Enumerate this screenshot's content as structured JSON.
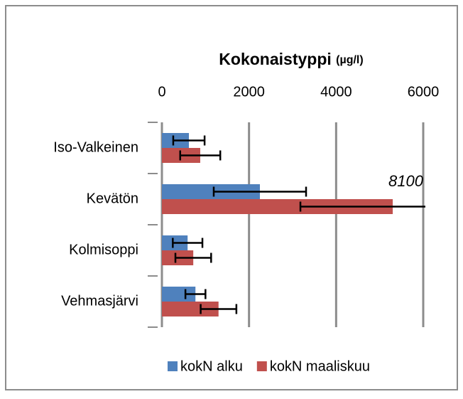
{
  "chart_data": {
    "type": "hbar_error",
    "title": "Kokonaistyppi",
    "title_unit": "(µg/l)",
    "categories": [
      "Iso-Valkeinen",
      "Kevätön",
      "Kolmisoppi",
      "Vehmasjärvi"
    ],
    "series": [
      {
        "name": "kokN alku",
        "color": "#4f81bd",
        "values": [
          620,
          2250,
          590,
          770
        ],
        "errors": [
          360,
          1060,
          340,
          230
        ]
      },
      {
        "name": "kokN maaliskuu",
        "color": "#c0504d",
        "values": [
          880,
          5300,
          720,
          1300
        ],
        "errors": [
          460,
          2120,
          410,
          410
        ]
      }
    ],
    "xlim": [
      0,
      6000
    ],
    "xticks": [
      0,
      2000,
      4000,
      6000
    ],
    "grid": true,
    "annotations": [
      {
        "text": "8100"
      }
    ],
    "legend": "bottom"
  }
}
